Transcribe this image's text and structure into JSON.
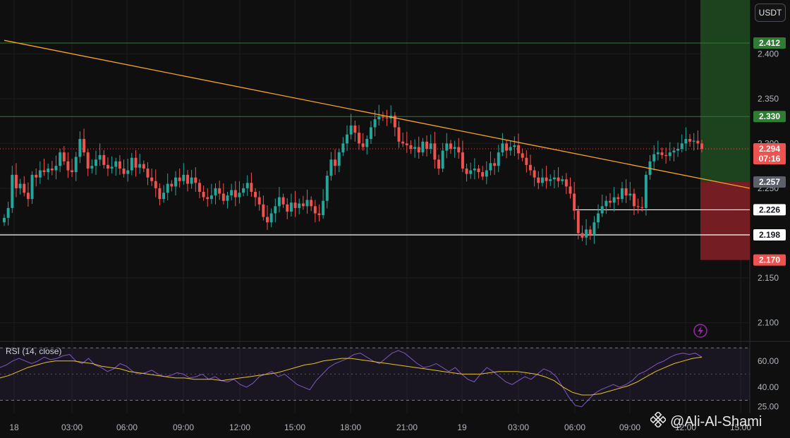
{
  "header": {
    "currency": "USDT"
  },
  "watermark": {
    "text": "@Ali-Al-Shami",
    "icon": "binance-logo-icon"
  },
  "rsi": {
    "label": "RSI (14, close)"
  },
  "colors": {
    "up": "#26a69a",
    "down": "#ef5350",
    "trend": "#f7a32b",
    "rsi": "#7e57c2",
    "rsi_ma": "#e6c229",
    "target_zone": "#1e4620",
    "stop_zone": "#7a1f24",
    "bg": "#0f0f0f"
  },
  "chart_data": [
    {
      "type": "candlestick",
      "ylim": [
        2.08,
        2.46
      ],
      "x_ticks": [
        "18",
        "03:00",
        "06:00",
        "09:00",
        "12:00",
        "15:00",
        "18:00",
        "21:00",
        "19",
        "03:00",
        "06:00",
        "09:00",
        "12:00",
        "15:00"
      ],
      "y_ticks": [
        "2.400",
        "2.350",
        "2.300",
        "2.250",
        "2.150",
        "2.100"
      ],
      "closes": [
        2.217,
        2.228,
        2.265,
        2.25,
        2.255,
        2.245,
        2.238,
        2.265,
        2.262,
        2.27,
        2.268,
        2.272,
        2.27,
        2.275,
        2.29,
        2.28,
        2.27,
        2.268,
        2.285,
        2.305,
        2.29,
        2.272,
        2.275,
        2.282,
        2.287,
        2.276,
        2.272,
        2.274,
        2.28,
        2.272,
        2.266,
        2.27,
        2.284,
        2.273,
        2.277,
        2.272,
        2.262,
        2.258,
        2.25,
        2.238,
        2.245,
        2.255,
        2.252,
        2.262,
        2.258,
        2.265,
        2.255,
        2.262,
        2.256,
        2.246,
        2.24,
        2.238,
        2.242,
        2.25,
        2.244,
        2.236,
        2.242,
        2.248,
        2.24,
        2.245,
        2.25,
        2.256,
        2.246,
        2.24,
        2.232,
        2.218,
        2.212,
        2.222,
        2.23,
        2.24,
        2.232,
        2.224,
        2.234,
        2.228,
        2.233,
        2.23,
        2.237,
        2.23,
        2.222,
        2.22,
        2.236,
        2.264,
        2.282,
        2.275,
        2.29,
        2.3,
        2.31,
        2.32,
        2.312,
        2.3,
        2.296,
        2.305,
        2.318,
        2.327,
        2.33,
        2.329,
        2.328,
        2.331,
        2.318,
        2.302,
        2.3,
        2.298,
        2.294,
        2.296,
        2.29,
        2.302,
        2.294,
        2.3,
        2.282,
        2.272,
        2.292,
        2.3,
        2.294,
        2.296,
        2.29,
        2.272,
        2.266,
        2.27,
        2.272,
        2.268,
        2.263,
        2.27,
        2.278,
        2.275,
        2.29,
        2.3,
        2.292,
        2.296,
        2.298,
        2.289,
        2.284,
        2.276,
        2.27,
        2.262,
        2.256,
        2.262,
        2.258,
        2.26,
        2.262,
        2.258,
        2.26,
        2.252,
        2.244,
        2.225,
        2.2,
        2.195,
        2.204,
        2.198,
        2.212,
        2.222,
        2.23,
        2.236,
        2.234,
        2.24,
        2.238,
        2.25,
        2.242,
        2.244,
        2.23,
        2.229,
        2.228,
        2.265,
        2.28,
        2.288,
        2.29,
        2.287,
        2.286,
        2.29,
        2.292,
        2.294,
        2.3,
        2.305,
        2.302,
        2.303,
        2.3,
        2.294
      ],
      "trendline": {
        "from": [
          0,
          2.415
        ],
        "to": [
          187,
          2.25
        ]
      },
      "levels": [
        {
          "value": 2.412,
          "label": "2.412",
          "color": "#2e7d32"
        },
        {
          "value": 2.33,
          "label": "2.330",
          "color": "#2e7d32"
        },
        {
          "value": 2.294,
          "label": "2.294",
          "sublabel": "07:16",
          "color": "#ef5350"
        },
        {
          "value": 2.257,
          "label": "2.257",
          "color": "#5d606b"
        },
        {
          "value": 2.226,
          "label": "2.226",
          "color": "#ffffff"
        },
        {
          "value": 2.198,
          "label": "2.198",
          "color": "#ffffff"
        },
        {
          "value": 2.17,
          "label": "2.170",
          "color": "#ef5350"
        }
      ]
    },
    {
      "type": "line",
      "name": "RSI (14, close)",
      "ylim": [
        20,
        75
      ],
      "y_ticks": [
        "60.00",
        "40.00",
        "25.00"
      ],
      "bands": [
        70,
        50,
        30
      ],
      "rsi_values": [
        55,
        57,
        60,
        62,
        60,
        58,
        60,
        63,
        61,
        62,
        64,
        65,
        60,
        58,
        62,
        57,
        55,
        52,
        54,
        58,
        56,
        52,
        50,
        51,
        53,
        50,
        48,
        49,
        51,
        50,
        47,
        48,
        50,
        46,
        48,
        45,
        44,
        46,
        42,
        40,
        43,
        48,
        50,
        52,
        48,
        50,
        46,
        42,
        40,
        38,
        45,
        50,
        55,
        58,
        60,
        62,
        65,
        66,
        63,
        60,
        58,
        62,
        66,
        68,
        66,
        62,
        58,
        55,
        56,
        58,
        55,
        52,
        55,
        50,
        46,
        44,
        50,
        55,
        52,
        48,
        44,
        42,
        45,
        48,
        46,
        50,
        54,
        52,
        48,
        40,
        32,
        26,
        25,
        30,
        35,
        38,
        40,
        42,
        40,
        42,
        45,
        50,
        52,
        55,
        58,
        60,
        63,
        65,
        66,
        65,
        66,
        63
      ],
      "ma_values": [
        47,
        49,
        52,
        55,
        57,
        59,
        60,
        60,
        60,
        59,
        58,
        56,
        55,
        54,
        52,
        51,
        50,
        49,
        48,
        47,
        47,
        46,
        46,
        46,
        45,
        46,
        47,
        48,
        49,
        50,
        51,
        53,
        55,
        57,
        58,
        60,
        61,
        62,
        62,
        61,
        60,
        59,
        58,
        57,
        56,
        55,
        54,
        53,
        52,
        51,
        50,
        50,
        50,
        51,
        52,
        52,
        52,
        51,
        50,
        48,
        45,
        40,
        36,
        34,
        34,
        35,
        37,
        39,
        41,
        44,
        48,
        52,
        55,
        58,
        60,
        62,
        63
      ]
    }
  ]
}
